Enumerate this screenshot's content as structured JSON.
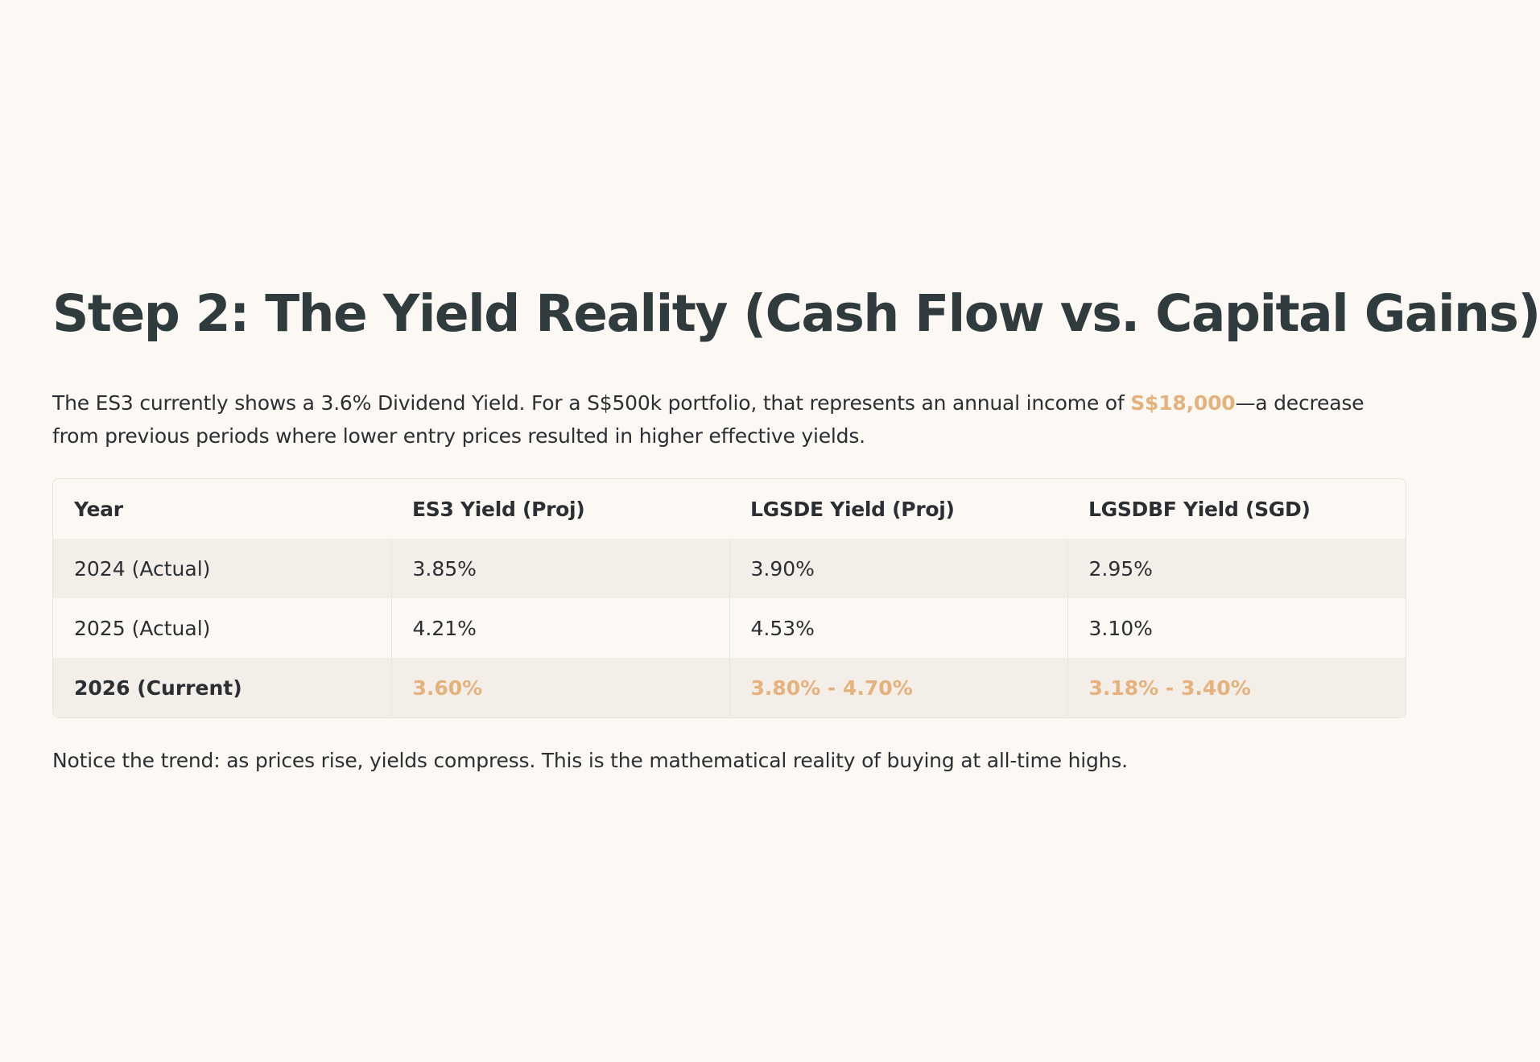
{
  "heading": "Step 2: The Yield Reality (Cash Flow vs. Capital Gains)",
  "intro": {
    "before": "The ES3 currently shows a 3.6% Dividend Yield. For a S$500k portfolio, that represents an annual income of ",
    "highlight": "S$18,000",
    "after": "—a decrease from previous periods where lower entry prices resulted in higher effective yields."
  },
  "table": {
    "headers": [
      "Year",
      "ES3 Yield (Proj)",
      "LGSDE Yield (Proj)",
      "LGSDBF Yield (SGD)"
    ],
    "rows": [
      [
        "2024 (Actual)",
        "3.85%",
        "3.90%",
        "2.95%"
      ],
      [
        "2025 (Actual)",
        "4.21%",
        "4.53%",
        "3.10%"
      ],
      [
        "2026 (Current)",
        "3.60%",
        "3.80% - 4.70%",
        "3.18% - 3.40%"
      ]
    ]
  },
  "note": "Notice the trend: as prices rise, yields compress. This is the mathematical reality of buying at all-time highs.",
  "colors": {
    "background": "#fcf8f3",
    "heading": "#2f3b3c",
    "text": "#2b2f33",
    "accent": "#e5b27d",
    "row_shade": "#f3eee8",
    "border": "#ebe3da"
  }
}
